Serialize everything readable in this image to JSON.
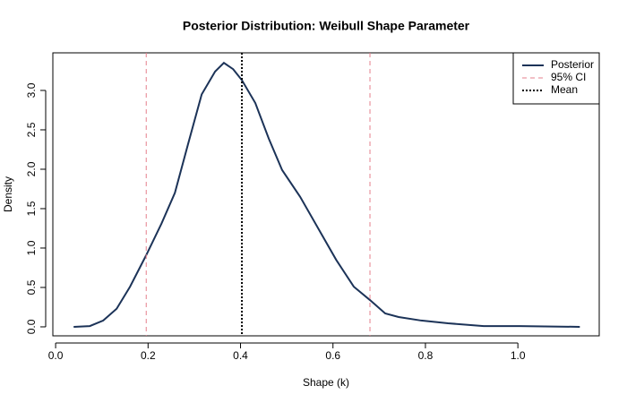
{
  "chart_data": {
    "type": "line",
    "title": "Posterior Distribution: Weibull Shape Parameter",
    "xlabel": "Shape (k)",
    "ylabel": "Density",
    "series": [
      {
        "name": "Posterior",
        "color": "#1c3358",
        "x": [
          0.039,
          0.074,
          0.103,
          0.132,
          0.161,
          0.196,
          0.229,
          0.258,
          0.287,
          0.316,
          0.345,
          0.364,
          0.384,
          0.403,
          0.432,
          0.461,
          0.49,
          0.529,
          0.568,
          0.607,
          0.645,
          0.68,
          0.713,
          0.742,
          0.791,
          0.849,
          0.926,
          1.004,
          1.134
        ],
        "values": [
          0,
          0.01,
          0.08,
          0.23,
          0.51,
          0.91,
          1.31,
          1.7,
          2.33,
          2.95,
          3.24,
          3.35,
          3.27,
          3.13,
          2.84,
          2.39,
          1.99,
          1.65,
          1.25,
          0.85,
          0.51,
          0.34,
          0.17,
          0.125,
          0.08,
          0.045,
          0.01,
          0.01,
          0
        ]
      }
    ],
    "vlines": [
      {
        "name": "95% CI",
        "color": "#e57f8c",
        "style": "dashed",
        "x": [
          0.196,
          0.68
        ]
      },
      {
        "name": "Mean",
        "color": "#000000",
        "style": "dotted",
        "x": [
          0.403
        ]
      }
    ],
    "xlim": [
      -0.006,
      1.176
    ],
    "ylim": [
      -0.114,
      3.477
    ],
    "xticks": [
      {
        "value": 0,
        "label": "0.0"
      },
      0.2,
      0.4,
      0.6,
      0.8,
      {
        "value": 1,
        "label": "1.0"
      }
    ],
    "yticks": [
      {
        "value": 0,
        "label": "0.0"
      },
      0.5,
      {
        "value": 1,
        "label": "1.0"
      },
      1.5,
      {
        "value": 2,
        "label": "2.0"
      },
      2.5,
      {
        "value": 3,
        "label": "3.0"
      }
    ],
    "legend": "top-right"
  }
}
